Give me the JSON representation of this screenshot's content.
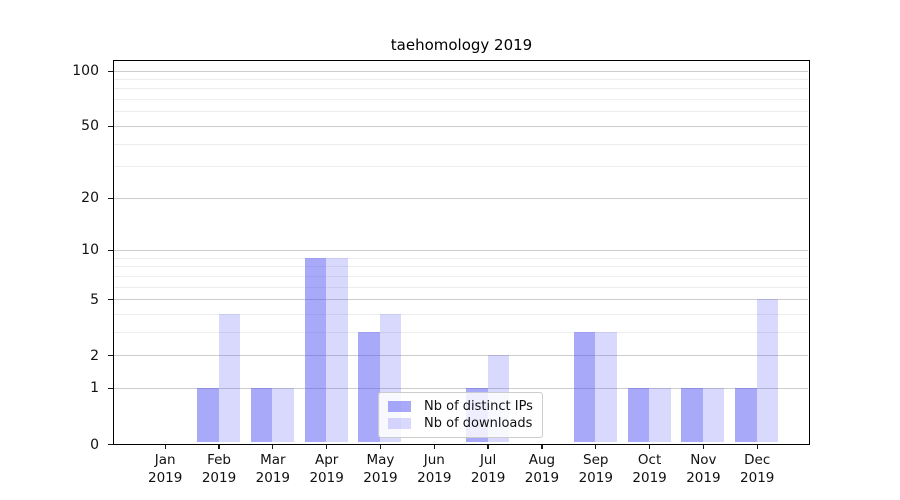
{
  "title": "taehomology 2019",
  "chart_data": {
    "type": "bar",
    "title": "taehomology 2019",
    "categories": [
      "Jan 2019",
      "Feb 2019",
      "Mar 2019",
      "Apr 2019",
      "May 2019",
      "Jun 2019",
      "Jul 2019",
      "Aug 2019",
      "Sep 2019",
      "Oct 2019",
      "Nov 2019",
      "Dec 2019"
    ],
    "series": [
      {
        "name": "Nb of distinct IPs",
        "key": "distinct-ips",
        "color": "rgba(80,80,245,0.49)",
        "values": [
          0,
          1,
          1,
          9,
          3,
          0,
          1,
          0,
          3,
          1,
          1,
          1
        ]
      },
      {
        "name": "Nb of downloads",
        "key": "downloads",
        "color": "rgba(80,80,245,0.22)",
        "values": [
          0,
          4,
          1,
          9,
          4,
          0,
          2,
          0,
          3,
          1,
          1,
          5
        ]
      }
    ],
    "xlabel": "",
    "ylabel": "",
    "yscale": "log1p",
    "ylim": [
      0,
      113
    ],
    "yticks": [
      0,
      1,
      2,
      5,
      10,
      20,
      50,
      100
    ],
    "minor_yticks": [
      3,
      4,
      6,
      7,
      8,
      9,
      30,
      40,
      60,
      70,
      80,
      90
    ],
    "grid": "horizontal",
    "legend_position": "lower center"
  },
  "colors": {
    "bar_distinct_ips": "#a9a9f9",
    "bar_downloads": "#d9d9fb",
    "major_grid": "#cdcdcd",
    "minor_grid": "#ededed",
    "axis": "#000000"
  }
}
